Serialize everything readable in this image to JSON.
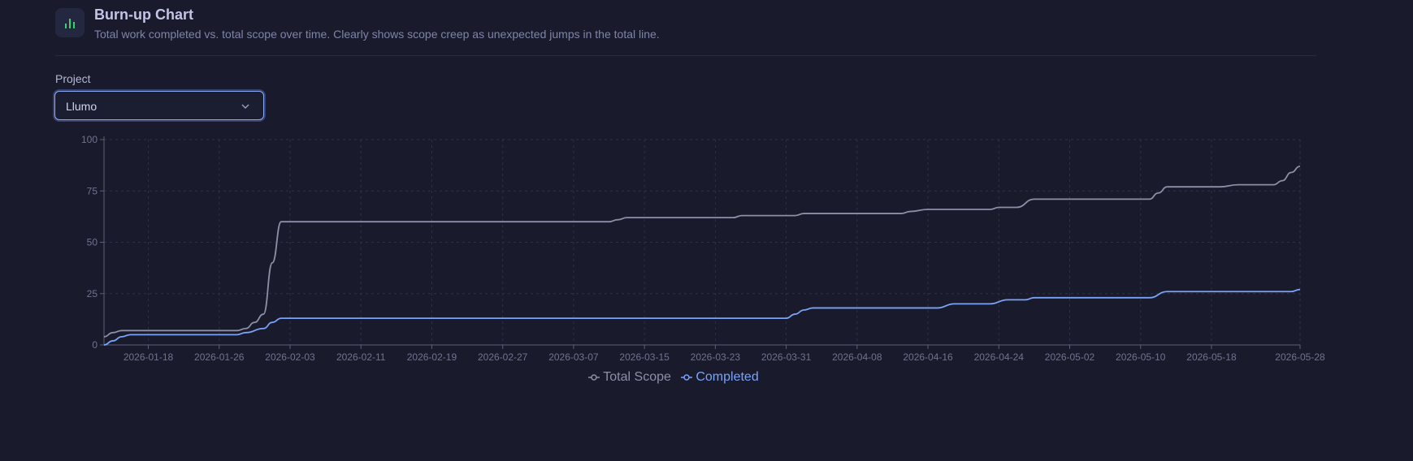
{
  "header": {
    "title": "Burn-up Chart",
    "subtitle": "Total work completed vs. total scope over time. Clearly shows scope creep as unexpected jumps in the total line.",
    "icon": "bar-chart-icon",
    "icon_color": "#3ecf6e"
  },
  "project": {
    "label": "Project",
    "selected": "Llumo"
  },
  "colors": {
    "background": "#191b2c",
    "total_scope": "#8c8fa6",
    "completed": "#7aa2f7",
    "grid": "#2e3148",
    "axis": "#5b5f78",
    "tick_text": "#6f7390"
  },
  "chart_data": {
    "type": "line",
    "xlabel": "",
    "ylabel": "",
    "ylim": [
      0,
      100
    ],
    "yticks": [
      0,
      25,
      50,
      75,
      100
    ],
    "xlim": [
      "2026-01-13",
      "2026-05-28"
    ],
    "xticks": [
      "2026-01-18",
      "2026-01-26",
      "2026-02-03",
      "2026-02-11",
      "2026-02-19",
      "2026-02-27",
      "2026-03-07",
      "2026-03-15",
      "2026-03-23",
      "2026-03-31",
      "2026-04-08",
      "2026-04-16",
      "2026-04-24",
      "2026-05-02",
      "2026-05-10",
      "2026-05-18",
      "2026-05-28"
    ],
    "grid": true,
    "legend_position": "bottom",
    "series": [
      {
        "name": "Total Scope",
        "points": [
          [
            "2026-01-13",
            4
          ],
          [
            "2026-01-14",
            6
          ],
          [
            "2026-01-15",
            7
          ],
          [
            "2026-01-28",
            7
          ],
          [
            "2026-01-29",
            8
          ],
          [
            "2026-01-30",
            11
          ],
          [
            "2026-01-31",
            15
          ],
          [
            "2026-02-01",
            40
          ],
          [
            "2026-02-02",
            60
          ],
          [
            "2026-03-11",
            60
          ],
          [
            "2026-03-12",
            61
          ],
          [
            "2026-03-13",
            62
          ],
          [
            "2026-03-25",
            62
          ],
          [
            "2026-03-26",
            63
          ],
          [
            "2026-04-01",
            63
          ],
          [
            "2026-04-02",
            64
          ],
          [
            "2026-04-13",
            64
          ],
          [
            "2026-04-14",
            65
          ],
          [
            "2026-04-16",
            66
          ],
          [
            "2026-04-23",
            66
          ],
          [
            "2026-04-24",
            67
          ],
          [
            "2026-04-26",
            67
          ],
          [
            "2026-04-28",
            71
          ],
          [
            "2026-05-11",
            71
          ],
          [
            "2026-05-12",
            74
          ],
          [
            "2026-05-13",
            77
          ],
          [
            "2026-05-19",
            77
          ],
          [
            "2026-05-21",
            78
          ],
          [
            "2026-05-25",
            78
          ],
          [
            "2026-05-26",
            80
          ],
          [
            "2026-05-27",
            84
          ],
          [
            "2026-05-28",
            87
          ]
        ]
      },
      {
        "name": "Completed",
        "points": [
          [
            "2026-01-13",
            0
          ],
          [
            "2026-01-14",
            2
          ],
          [
            "2026-01-15",
            4
          ],
          [
            "2026-01-16",
            5
          ],
          [
            "2026-01-28",
            5
          ],
          [
            "2026-01-29",
            6
          ],
          [
            "2026-01-31",
            8
          ],
          [
            "2026-02-01",
            11
          ],
          [
            "2026-02-02",
            13
          ],
          [
            "2026-03-31",
            13
          ],
          [
            "2026-04-01",
            15
          ],
          [
            "2026-04-02",
            17
          ],
          [
            "2026-04-03",
            18
          ],
          [
            "2026-04-17",
            18
          ],
          [
            "2026-04-19",
            20
          ],
          [
            "2026-04-23",
            20
          ],
          [
            "2026-04-25",
            22
          ],
          [
            "2026-04-27",
            22
          ],
          [
            "2026-04-28",
            23
          ],
          [
            "2026-05-11",
            23
          ],
          [
            "2026-05-13",
            26
          ],
          [
            "2026-05-27",
            26
          ],
          [
            "2026-05-28",
            27
          ]
        ]
      }
    ]
  }
}
